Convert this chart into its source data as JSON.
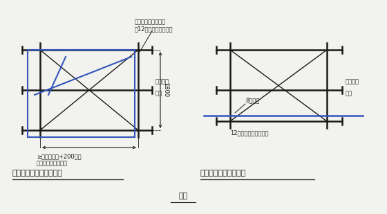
{
  "bg_color": "#f2f2ee",
  "line_color": "#1a1a1a",
  "blue_color": "#3355bb",
  "title1": "窗洞口（室内临边）防护",
  "title2": "阳台或落地窗洞口防护",
  "fig_label": "图四",
  "ann_top": "立杆通过穿墙螺杆洞\n用12号铁丝固定于墙体",
  "ann_aqw_l": "安全绿网",
  "ann_gg_l": "钢管",
  "ann_1800": "1800",
  "ann_width": "≥窗洞口尺寸+200，根\n据穿墙螺栓位置调节",
  "ann_aqw_r": "安全绿网",
  "ann_gg_r": "钢管",
  "ann_8bp": "8厚钢板",
  "ann_12": "12号膨胀螺丝楼板固定"
}
